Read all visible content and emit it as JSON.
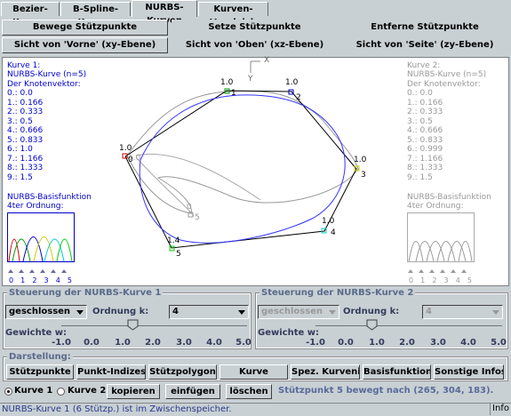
{
  "tabs": [
    {
      "label": "Bezier-Kurven",
      "active": false
    },
    {
      "label": "B-Spline-Kurven",
      "active": false
    },
    {
      "label": "NURBS-Kurven",
      "active": true
    },
    {
      "label": "Kurven-Vergleich",
      "active": false
    }
  ],
  "modes": {
    "move": "Bewege Stützpunkte",
    "set": "Setze Stützpunkte",
    "remove": "Entferne Stützpunkte"
  },
  "views": {
    "front": "Sicht von 'Vorne' (xy-Ebene)",
    "top": "Sicht von 'Oben' (xz-Ebene)",
    "side": "Sicht von 'Seite' (zy-Ebene)"
  },
  "canvas": {
    "axis_x": "X",
    "axis_y": "Y",
    "curve1": {
      "title": "Kurve 1:",
      "subtitle": "NURBS-Kurve (n=5)",
      "knot_title": "Der Knotenvektor:",
      "knots": [
        "0.: 0.0",
        "1.: 0.166",
        "2.: 0.333",
        "3.: 0.5",
        "4.: 0.666",
        "5.: 0.833",
        "6.: 1.0",
        "7.: 1.166",
        "8.: 1.333",
        "9.: 1.5"
      ],
      "basis_title": "NURBS-Basisfunktion",
      "basis_order": "4ter Ordnung:",
      "basis_ticks": "0  1  2  3  4  5"
    },
    "curve2": {
      "title": "Kurve 2:",
      "subtitle": "NURBS-Kurve (n=5)",
      "knot_title": "Der Knotenvektor:",
      "knots": [
        "0.: 0.0",
        "1.: 0.166",
        "2.: 0.333",
        "3.: 0.5",
        "4.: 0.666",
        "5.: 0.833",
        "6.: 0.999",
        "7.: 1.166",
        "8.: 1.333",
        "9.: 1.5"
      ],
      "basis_title": "NURBS-Basisfunktion",
      "basis_order": "4ter Ordnung:",
      "basis_ticks": "0  1  2  3  4  5"
    },
    "point_labels": {
      "p0": "1.0",
      "p0i": "0",
      "p1": "1.0",
      "p1i": "1",
      "p2": "1.0",
      "p2i": "2",
      "p3": "1.0",
      "p3i": "3",
      "p4": "1.0",
      "p4i": "4",
      "p5": "1.4",
      "p5i": "5",
      "g0": "1.0",
      "g0i": "0",
      "g5": "1.0",
      "g5i": "5"
    }
  },
  "control1": {
    "title": "Steuerung der NURBS-Kurve 1",
    "closed": "geschlossen",
    "order_label": "Ordnung k:",
    "order_value": "4",
    "weight_label": "Gewichte w:",
    "slider_value": 0.0,
    "ticks": [
      "-1.0",
      "0.0",
      "1.0",
      "2.0",
      "3.0",
      "4.0",
      "5.0"
    ]
  },
  "control2": {
    "title": "Steuerung der NURBS-Kurve 2",
    "closed": "geschlossen",
    "order_label": "Ordnung k:",
    "order_value": "4",
    "weight_label": "Gewichte w:",
    "slider_value": 0.0,
    "ticks": [
      "-1.0",
      "0.0",
      "1.0",
      "2.0",
      "3.0",
      "4.0",
      "5.0"
    ]
  },
  "display": {
    "title": "Darstellung:",
    "buttons": [
      "Stützpunkte",
      "Punkt-Indizes",
      "Stützpolygon",
      "Kurve",
      "Spez. Kurveninfos",
      "Basisfunktion",
      "Sonstige Infos"
    ]
  },
  "bottom": {
    "radio1": "Kurve 1",
    "radio2": "Kurve 2",
    "copy": "kopieren",
    "paste": "einfügen",
    "delete": "löschen",
    "message": "Stützpunkt 5 bewegt nach (265, 304, 183)."
  },
  "status": {
    "text": "NURBS-Kurve 1 (6 Stützp.) ist im Zwischenspeicher.",
    "info": "Info"
  },
  "colors": {
    "curve1": "#3333ff",
    "curve2": "#999999",
    "polygon": "#000000",
    "label": "#0000cc"
  }
}
